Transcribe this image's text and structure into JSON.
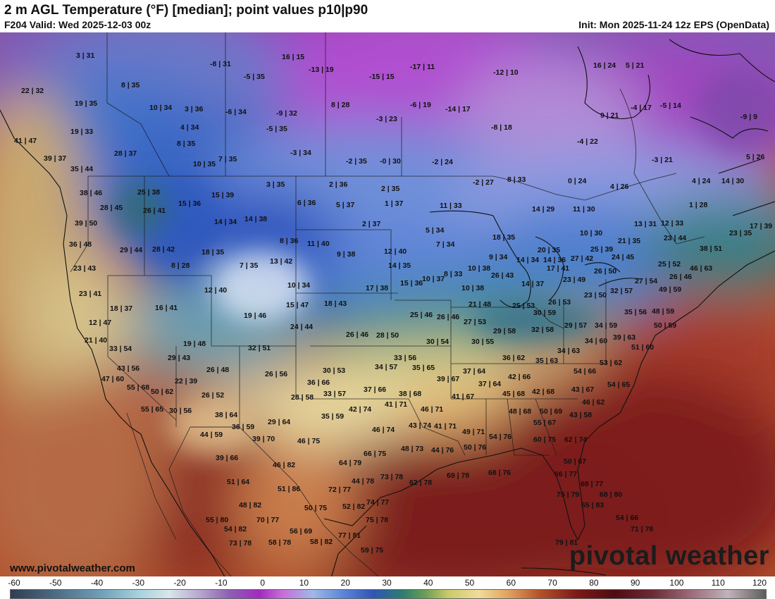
{
  "header": {
    "title": "2 m AGL Temperature (°F) [median]; point values p10|p90",
    "valid": "F204 Valid: Wed 2025-12-03 00z",
    "init": "Init: Mon 2025-11-24 12z EPS (OpenData)"
  },
  "footer": {
    "website": "www.pivotalweather.com",
    "brand": "pivotal weather"
  },
  "colorbar": {
    "ticks": [
      "-60",
      "-50",
      "-40",
      "-30",
      "-20",
      "-10",
      "0",
      "10",
      "20",
      "30",
      "40",
      "50",
      "60",
      "70",
      "80",
      "90",
      "100",
      "110",
      "120"
    ]
  },
  "points": [
    "3 | 31",
    "-8 | 31",
    "16 | 15",
    "-13 | 19",
    "-17 | 11",
    "-12 | 10",
    "16 | 24",
    "5 | 21",
    "22 | 32",
    "8 | 35",
    "-5 | 35",
    "-15 | 15",
    "19 | 35",
    "10 | 34",
    "3 | 36",
    "-6 | 34",
    "-9 | 32",
    "8 | 28",
    "-6 | 19",
    "-14 | 17",
    "-4 | 17",
    "-5 | 14",
    "-9 | 9",
    "9 | 21",
    "19 | 33",
    "4 | 34",
    "-5 | 35",
    "-3 | 23",
    "-8 | 18",
    "41 | 47",
    "8 | 35",
    "-3 | 34",
    "-4 | 22",
    "28 | 37",
    "39 | 37",
    "7 | 35",
    "10 | 35",
    "-2 | 35",
    "-0 | 30",
    "-2 | 24",
    "-3 | 21",
    "5 | 26",
    "35 | 44",
    "2 | 36",
    "8 | 33",
    "0 | 24",
    "4 | 26",
    "4 | 24",
    "14 | 30",
    "3 | 35",
    "2 | 35",
    "38 | 46",
    "25 | 38",
    "15 | 39",
    "6 | 36",
    "5 | 37",
    "1 | 37",
    "-2 | 27",
    "11 | 33",
    "14 | 29",
    "11 | 30",
    "1 | 28",
    "28 | 45",
    "26 | 41",
    "15 | 36",
    "14 | 34",
    "14 | 38",
    "2 | 37",
    "5 | 34",
    "13 | 31",
    "12 | 33",
    "17 | 39",
    "39 | 50",
    "18 | 35",
    "10 | 30",
    "21 | 35",
    "23 | 35",
    "18 | 35",
    "36 | 48",
    "29 | 44",
    "28 | 42",
    "8 | 36",
    "11 | 40",
    "7 | 34",
    "9 | 34",
    "14 | 34",
    "20 | 35",
    "25 | 39",
    "23 | 44",
    "38 | 51",
    "23 | 43",
    "8 | 28",
    "7 | 35",
    "13 | 42",
    "9 | 38",
    "12 | 40",
    "14 | 35",
    "14 | 36",
    "27 | 42",
    "24 | 45",
    "25 | 52",
    "46 | 63",
    "23 | 41",
    "12 | 40",
    "10 | 34",
    "8 | 33",
    "10 | 38",
    "14 | 37",
    "17 | 41",
    "26 | 50",
    "26 | 46",
    "18 | 37",
    "16 | 41",
    "17 | 38",
    "15 | 36",
    "10 | 37",
    "10 | 38",
    "26 | 43",
    "23 | 49",
    "27 | 54",
    "49 | 59",
    "12 | 47",
    "15 | 47",
    "18 | 43",
    "21 | 48",
    "25 | 53",
    "26 | 53",
    "23 | 50",
    "32 | 57",
    "35 | 56",
    "48 | 59",
    "21 | 40",
    "19 | 46",
    "24 | 44",
    "25 | 46",
    "26 | 46",
    "27 | 53",
    "30 | 59",
    "29 | 57",
    "34 | 59",
    "50 | 59",
    "33 | 54",
    "19 | 48",
    "26 | 46",
    "28 | 50",
    "30 | 54",
    "30 | 55",
    "29 | 58",
    "32 | 58",
    "34 | 60",
    "39 | 63",
    "51 | 60",
    "43 | 56",
    "29 | 43",
    "32 | 51",
    "33 | 56",
    "34 | 63",
    "36 | 62",
    "35 | 63",
    "53 | 62",
    "47 | 60",
    "22 | 39",
    "26 | 48",
    "26 | 56",
    "30 | 53",
    "34 | 57",
    "35 | 65",
    "37 | 64",
    "54 | 66",
    "55 | 68",
    "50 | 62",
    "26 | 52",
    "36 | 66",
    "39 | 67",
    "37 | 64",
    "42 | 66",
    "42 | 68",
    "43 | 67",
    "54 | 65",
    "55 | 65",
    "30 | 56",
    "28 | 58",
    "33 | 57",
    "37 | 66",
    "38 | 68",
    "41 | 67",
    "45 | 68",
    "46 | 62",
    "38 | 64",
    "41 | 71",
    "46 | 71",
    "48 | 68",
    "50 | 69",
    "43 | 58",
    "36 | 59",
    "29 | 64",
    "35 | 59",
    "42 | 74",
    "43 | 74",
    "41 | 71",
    "49 | 71",
    "55 | 67",
    "44 | 59",
    "39 | 70",
    "46 | 74",
    "48 | 73",
    "54 | 76",
    "60 | 75",
    "62 | 74",
    "39 | 66",
    "46 | 75",
    "50 | 76",
    "44 | 76",
    "66 | 75",
    "50 | 67",
    "46 | 82",
    "64 | 79",
    "62 | 78",
    "69 | 78",
    "68 | 76",
    "66 | 77",
    "51 | 64",
    "51 | 86",
    "44 | 78",
    "73 | 78",
    "68 | 77",
    "48 | 82",
    "72 | 77",
    "75 | 79",
    "68 | 80",
    "55 | 80",
    "50 | 75",
    "52 | 82",
    "74 | 77",
    "65 | 83",
    "70 | 77",
    "54 | 82",
    "75 | 78",
    "54 | 66",
    "56 | 69",
    "77 | 81",
    "71 | 78",
    "73 | 78",
    "58 | 78",
    "58 | 82",
    "79 | 81",
    "59 | 75"
  ]
}
